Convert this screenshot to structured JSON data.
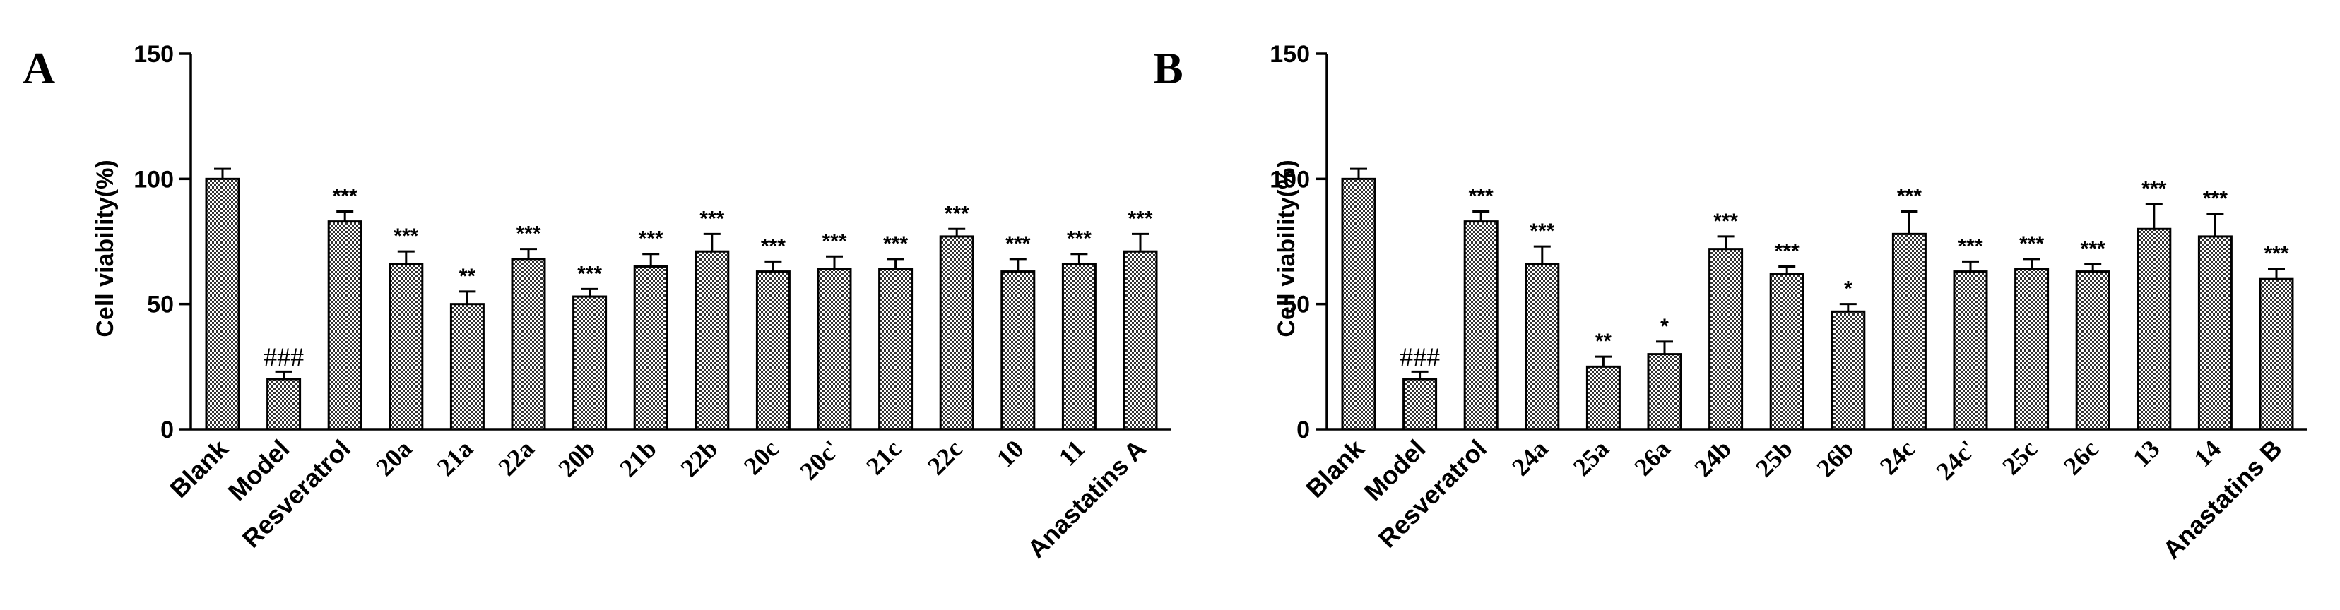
{
  "chart_data": [
    {
      "type": "bar",
      "panel_label": "A",
      "ylabel": "Cell viability(%)",
      "ylim": [
        0,
        150
      ],
      "yticks": [
        0,
        50,
        100,
        150
      ],
      "categories": [
        "Blank",
        "Model",
        "Resveratrol",
        "20a",
        "21a",
        "22a",
        "20b",
        "21b",
        "22b",
        "20c",
        "20c'",
        "21c",
        "22c",
        "10",
        "11",
        "Anastatins A"
      ],
      "values": [
        100,
        20,
        83,
        66,
        50,
        68,
        53,
        65,
        71,
        63,
        64,
        64,
        77,
        63,
        66,
        71
      ],
      "errors": [
        4,
        3,
        4,
        5,
        5,
        4,
        3,
        5,
        7,
        4,
        5,
        4,
        3,
        5,
        4,
        7
      ],
      "annotations": [
        "",
        "###",
        "***",
        "***",
        "**",
        "***",
        "***",
        "***",
        "***",
        "***",
        "***",
        "***",
        "***",
        "***",
        "***",
        "***"
      ],
      "bar_fill": "checkered",
      "colors": {
        "bar": "#555555",
        "axis": "#000000"
      }
    },
    {
      "type": "bar",
      "panel_label": "B",
      "ylabel": "Cell viability(%)",
      "ylim": [
        0,
        150
      ],
      "yticks": [
        0,
        50,
        100,
        150
      ],
      "categories": [
        "Blank",
        "Model",
        "Resveratrol",
        "24a",
        "25a",
        "26a",
        "24b",
        "25b",
        "26b",
        "24c",
        "24c'",
        "25c",
        "26c",
        "13",
        "14",
        "Anastatins B"
      ],
      "values": [
        100,
        20,
        83,
        66,
        25,
        30,
        72,
        62,
        47,
        78,
        63,
        64,
        63,
        80,
        77,
        60
      ],
      "errors": [
        4,
        3,
        4,
        7,
        4,
        5,
        5,
        3,
        3,
        9,
        4,
        4,
        3,
        10,
        9,
        4
      ],
      "annotations": [
        "",
        "###",
        "***",
        "***",
        "**",
        "*",
        "***",
        "***",
        "*",
        "***",
        "***",
        "***",
        "***",
        "***",
        "***",
        "***"
      ],
      "bar_fill": "checkered",
      "colors": {
        "bar": "#555555",
        "axis": "#000000"
      }
    }
  ]
}
